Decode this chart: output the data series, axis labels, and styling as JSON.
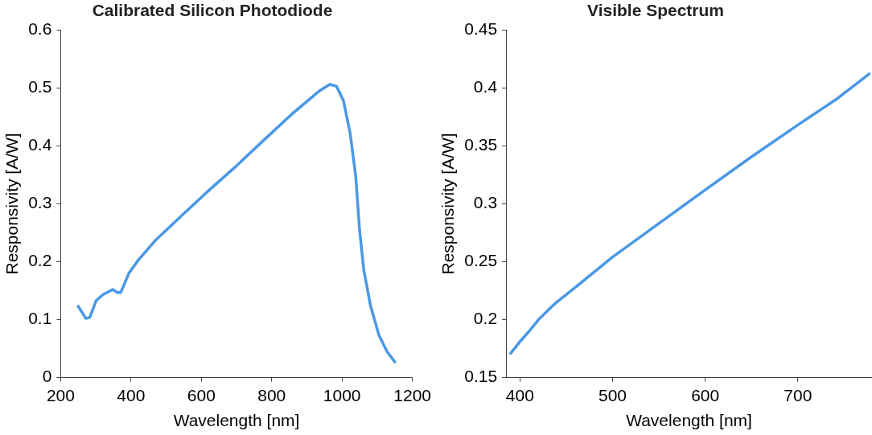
{
  "chart_data": [
    {
      "type": "line",
      "title": "Calibrated Silicon Photodiode",
      "xlabel": "Wavelength [nm]",
      "ylabel": "Responsivity [A/W]",
      "xlim": [
        200,
        1200
      ],
      "xticks": [
        200,
        400,
        600,
        800,
        1000,
        1200
      ],
      "ylim": [
        0,
        0.6
      ],
      "yticks": [
        0,
        0.1,
        0.2,
        0.3,
        0.4,
        0.5,
        0.6
      ],
      "grid": false,
      "legend": false,
      "marker": "none",
      "line_style": "solid",
      "series": [
        {
          "color": "#4a98e6",
          "x": [
            250,
            272,
            283,
            301,
            320,
            348,
            361,
            371,
            394,
            421,
            468,
            545,
            623,
            701,
            778,
            856,
            934,
            965,
            984,
            1004,
            1023,
            1039,
            1050,
            1062,
            1081,
            1105,
            1128,
            1150
          ],
          "values": [
            0.123,
            0.102,
            0.104,
            0.133,
            0.143,
            0.152,
            0.147,
            0.147,
            0.18,
            0.203,
            0.236,
            0.28,
            0.324,
            0.366,
            0.41,
            0.454,
            0.494,
            0.506,
            0.503,
            0.478,
            0.422,
            0.347,
            0.254,
            0.185,
            0.124,
            0.073,
            0.045,
            0.027
          ]
        }
      ]
    },
    {
      "type": "line",
      "title": "Visible Spectrum",
      "xlabel": "Wavelength [nm]",
      "ylabel": "Responsivity [A/W]",
      "xlim": [
        385,
        780
      ],
      "xticks": [
        400,
        500,
        600,
        700
      ],
      "ylim": [
        0.15,
        0.45
      ],
      "yticks": [
        0.15,
        0.2,
        0.25,
        0.3,
        0.35,
        0.4,
        0.45
      ],
      "grid": false,
      "legend": false,
      "marker": "none",
      "line_style": "solid",
      "series": [
        {
          "color": "#4a98e6",
          "x": [
            390,
            400,
            411,
            420,
            438,
            463,
            500,
            550,
            600,
            649,
            700,
            743,
            777
          ],
          "values": [
            0.171,
            0.181,
            0.191,
            0.2,
            0.214,
            0.23,
            0.254,
            0.283,
            0.312,
            0.34,
            0.368,
            0.391,
            0.412
          ]
        }
      ]
    }
  ]
}
